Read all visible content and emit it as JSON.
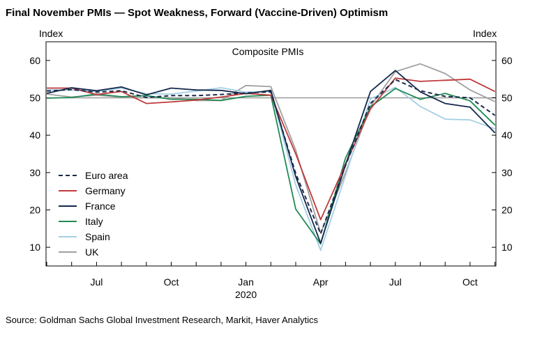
{
  "title": "Final November PMIs — Spot Weakness, Forward (Vaccine-Driven) Optimism",
  "source": "Source: Goldman Sachs Global Investment Research, Markit, Haver Analytics",
  "chart_data": {
    "type": "line",
    "title": "Composite PMIs",
    "ylabel_left": "Index",
    "ylabel_right": "Index",
    "ylim": [
      5,
      65
    ],
    "yticks": [
      10,
      20,
      30,
      40,
      50,
      60
    ],
    "reference_line": 50,
    "x": [
      "2019-05",
      "2019-06",
      "2019-07",
      "2019-08",
      "2019-09",
      "2019-10",
      "2019-11",
      "2019-12",
      "2020-01",
      "2020-02",
      "2020-03",
      "2020-04",
      "2020-05",
      "2020-06",
      "2020-07",
      "2020-08",
      "2020-09",
      "2020-10",
      "2020-11"
    ],
    "xticks": [
      {
        "label": "Jul",
        "index": 2
      },
      {
        "label": "Oct",
        "index": 5
      },
      {
        "label": "Jan",
        "sublabel": "2020",
        "index": 8
      },
      {
        "label": "Apr",
        "index": 11
      },
      {
        "label": "Jul",
        "index": 14
      },
      {
        "label": "Oct",
        "index": 17
      }
    ],
    "legend_position": "bottom-left",
    "series": [
      {
        "name": "Euro area",
        "color": "#1b2a4a",
        "dash": true,
        "values": [
          51.8,
          52.2,
          51.5,
          51.9,
          50.1,
          50.6,
          50.6,
          50.9,
          51.3,
          51.6,
          29.7,
          13.6,
          31.9,
          48.5,
          54.9,
          51.9,
          50.4,
          50.0,
          45.3
        ]
      },
      {
        "name": "Germany",
        "color": "#c0393b",
        "dash": false,
        "values": [
          52.6,
          52.6,
          50.9,
          51.7,
          48.5,
          48.9,
          49.4,
          50.2,
          51.2,
          50.7,
          35.0,
          17.4,
          32.3,
          47.0,
          55.3,
          54.4,
          54.7,
          55.0,
          51.7
        ]
      },
      {
        "name": "France",
        "color": "#14284b",
        "dash": false,
        "values": [
          51.2,
          52.7,
          51.9,
          52.9,
          50.8,
          52.6,
          52.1,
          52.0,
          51.1,
          52.0,
          28.9,
          11.1,
          32.1,
          51.7,
          57.3,
          51.6,
          48.5,
          47.5,
          40.6
        ]
      },
      {
        "name": "Italy",
        "color": "#1f8a54",
        "dash": false,
        "values": [
          49.9,
          50.1,
          51.0,
          50.3,
          50.6,
          49.6,
          49.6,
          49.3,
          50.4,
          50.7,
          20.2,
          10.9,
          33.9,
          47.6,
          52.5,
          49.6,
          51.2,
          49.2,
          42.7
        ]
      },
      {
        "name": "Spain",
        "color": "#a5cfe5",
        "dash": false,
        "values": [
          52.1,
          52.1,
          51.7,
          52.6,
          51.1,
          51.0,
          51.8,
          52.7,
          51.5,
          51.7,
          26.7,
          9.2,
          29.2,
          49.7,
          52.8,
          47.7,
          44.3,
          44.1,
          41.7
        ]
      },
      {
        "name": "UK",
        "color": "#a0a0a0",
        "dash": false,
        "values": [
          51.0,
          50.2,
          50.7,
          50.2,
          50.0,
          50.0,
          49.3,
          49.3,
          53.3,
          53.0,
          36.0,
          13.8,
          30.0,
          47.7,
          57.0,
          59.1,
          56.5,
          52.1,
          49.0
        ]
      }
    ]
  }
}
